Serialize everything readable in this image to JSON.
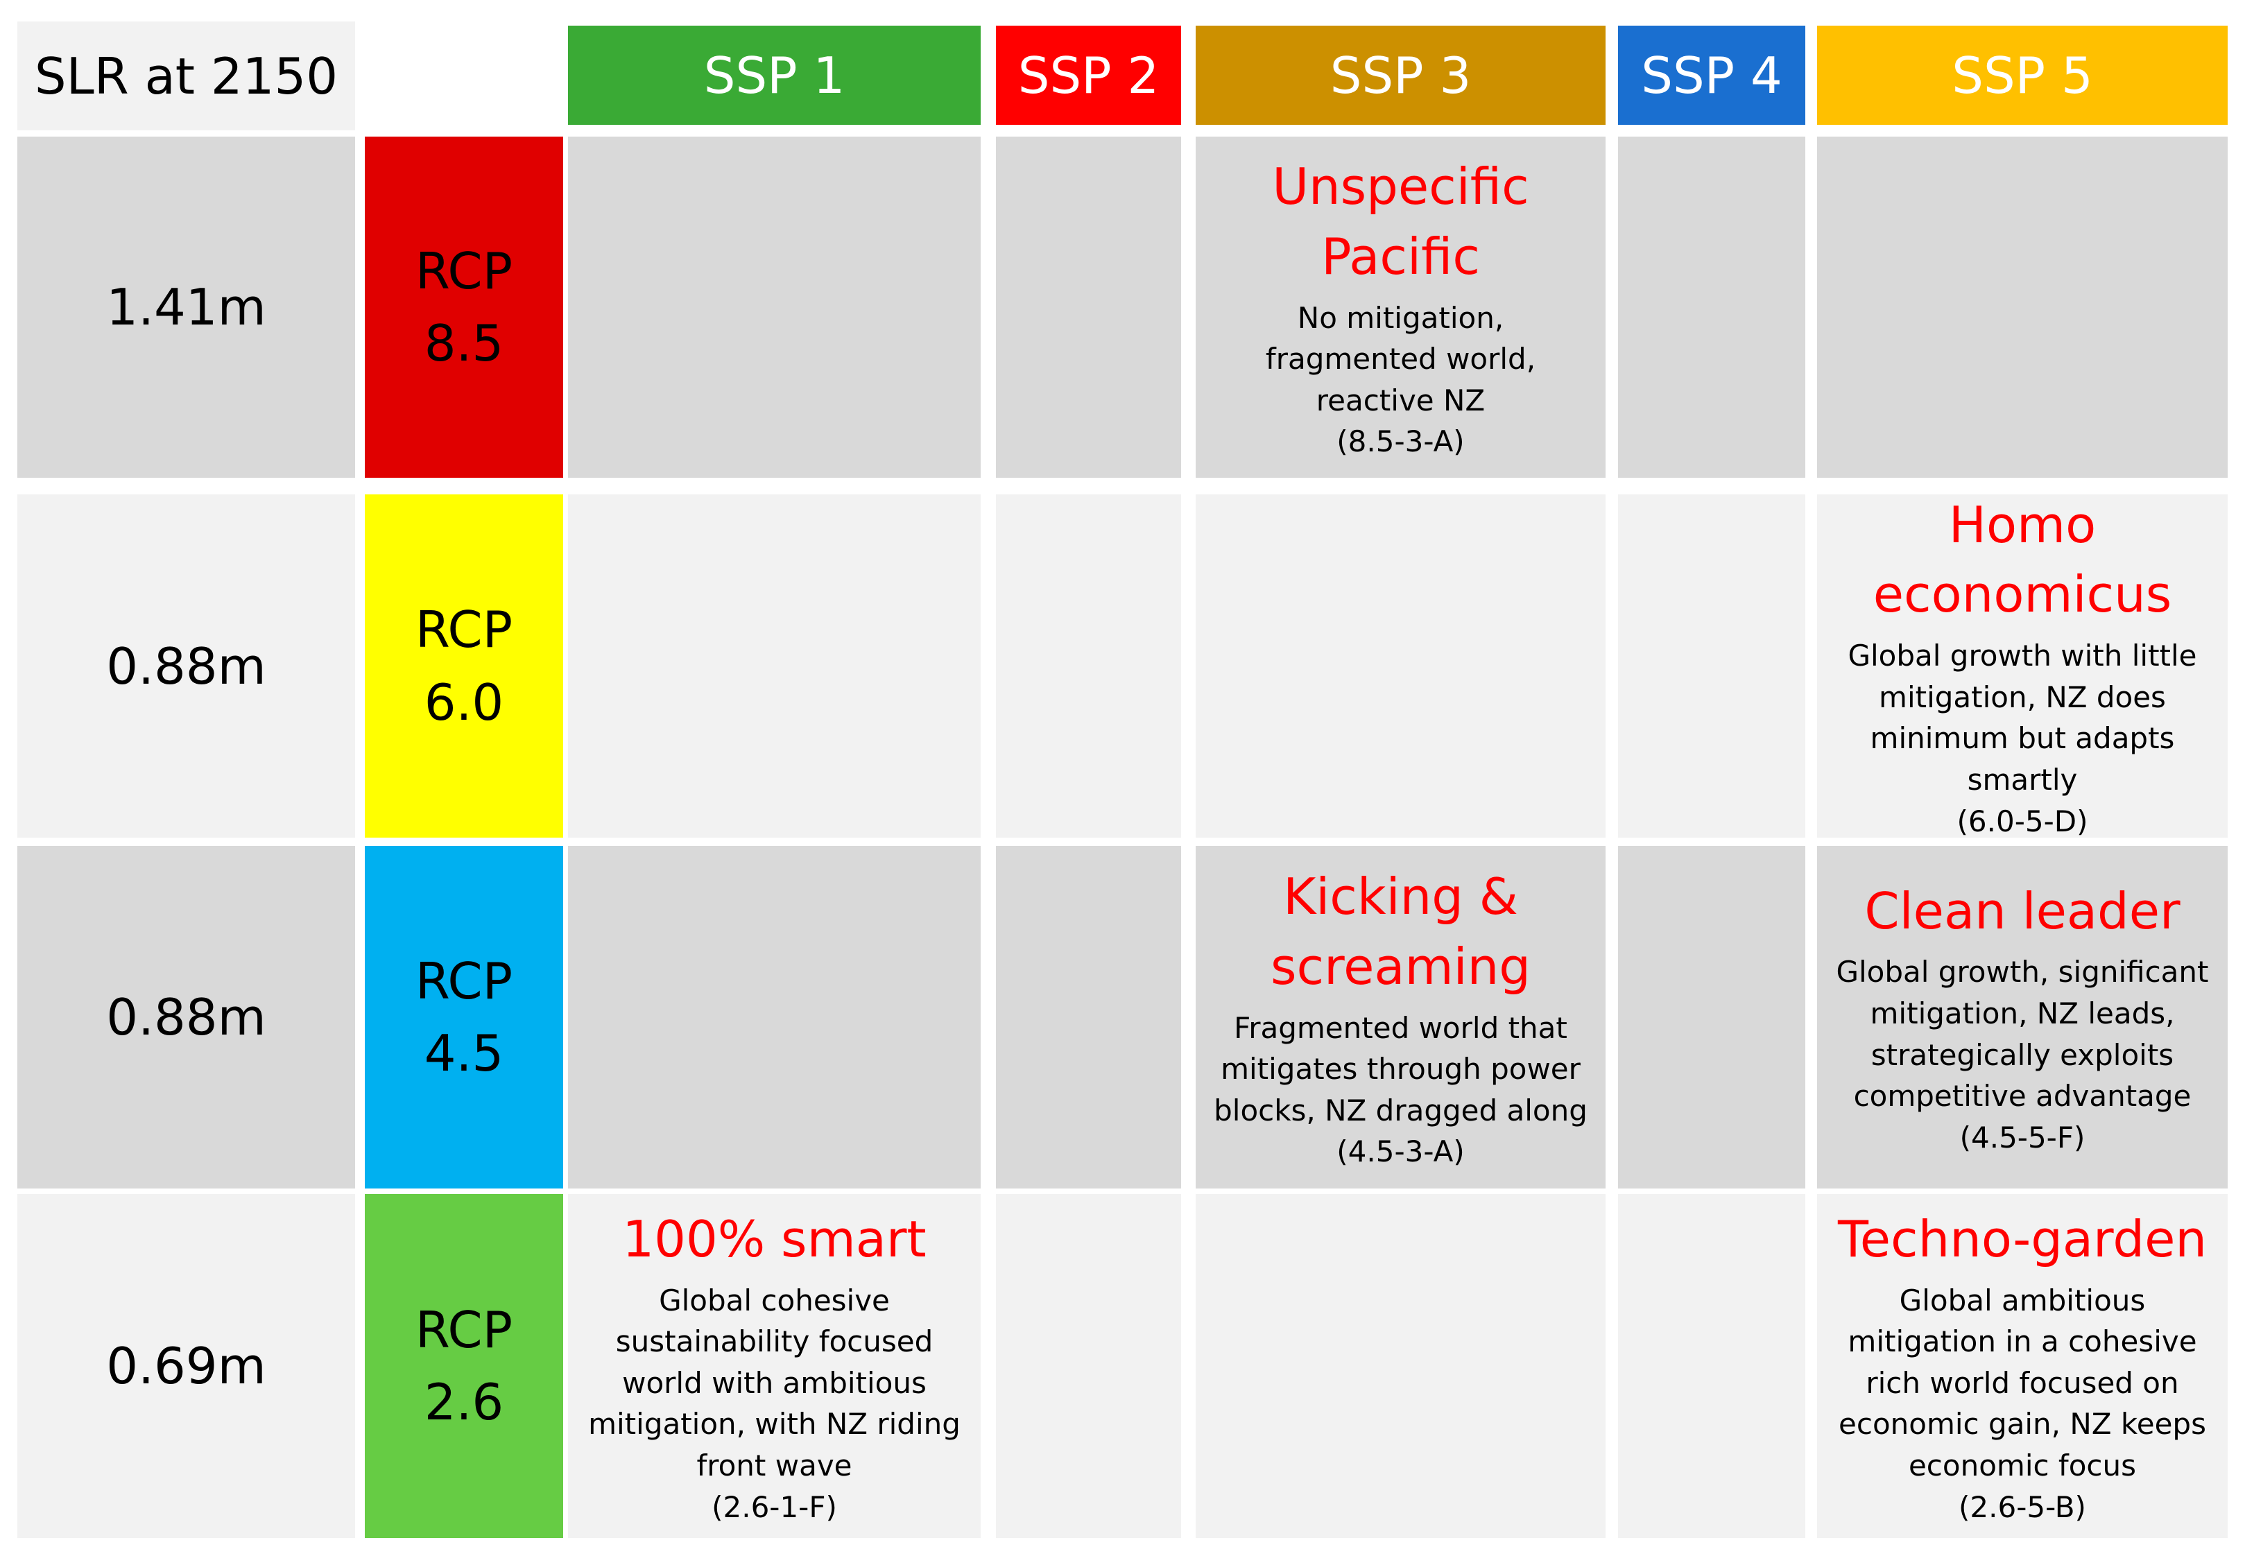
{
  "corner_label": "SLR at 2150",
  "ssp_headers": [
    {
      "label": "SSP 1",
      "color": "#3aaa35"
    },
    {
      "label": "SSP 2",
      "color": "#ff0000"
    },
    {
      "label": "SSP 3",
      "color": "#cc9000"
    },
    {
      "label": "SSP 4",
      "color": "#1a6fd0"
    },
    {
      "label": "SSP 5",
      "color": "#ffc000"
    }
  ],
  "rows": [
    {
      "slr": "1.41m",
      "rcp_line1": "RCP",
      "rcp_line2": "8.5",
      "rcp_color": "#e00000"
    },
    {
      "slr": "0.88m",
      "rcp_line1": "RCP",
      "rcp_line2": "6.0",
      "rcp_color": "#ffff00"
    },
    {
      "slr": "0.88m",
      "rcp_line1": "RCP",
      "rcp_line2": "4.5",
      "rcp_color": "#00b0f0"
    },
    {
      "slr": "0.69m",
      "rcp_line1": "RCP",
      "rcp_line2": "2.6",
      "rcp_color": "#66cc44"
    }
  ],
  "scenarios": {
    "unspecific_pacific": {
      "title1": "Unspecific",
      "title2": "Pacific",
      "lines": [
        "No mitigation,",
        "fragmented world,",
        "reactive NZ",
        "(8.5-3-A)"
      ]
    },
    "homo_economicus": {
      "title1": "Homo",
      "title2": "economicus",
      "lines": [
        "Global growth with little",
        "mitigation, NZ does",
        "minimum but adapts",
        "smartly",
        "(6.0-5-D)"
      ]
    },
    "kicking_screaming": {
      "title1": "Kicking &",
      "title2": "screaming",
      "lines": [
        "Fragmented world that",
        "mitigates through power",
        "blocks, NZ dragged along",
        "(4.5-3-A)"
      ]
    },
    "clean_leader": {
      "title1": "Clean leader",
      "lines": [
        "Global growth, significant",
        "mitigation, NZ leads,",
        "strategically exploits",
        "competitive advantage",
        "(4.5-5-F)"
      ]
    },
    "smart_100": {
      "title1": "100% smart",
      "lines": [
        "Global cohesive",
        "sustainability focused",
        "world with ambitious",
        "mitigation, with NZ riding",
        "front wave",
        "(2.6-1-F)"
      ]
    },
    "techno_garden": {
      "title1": "Techno-garden",
      "lines": [
        "Global ambitious",
        "mitigation in a cohesive",
        "rich world focused on",
        "economic gain, NZ keeps",
        "economic focus",
        "(2.6-5-B)"
      ]
    }
  }
}
